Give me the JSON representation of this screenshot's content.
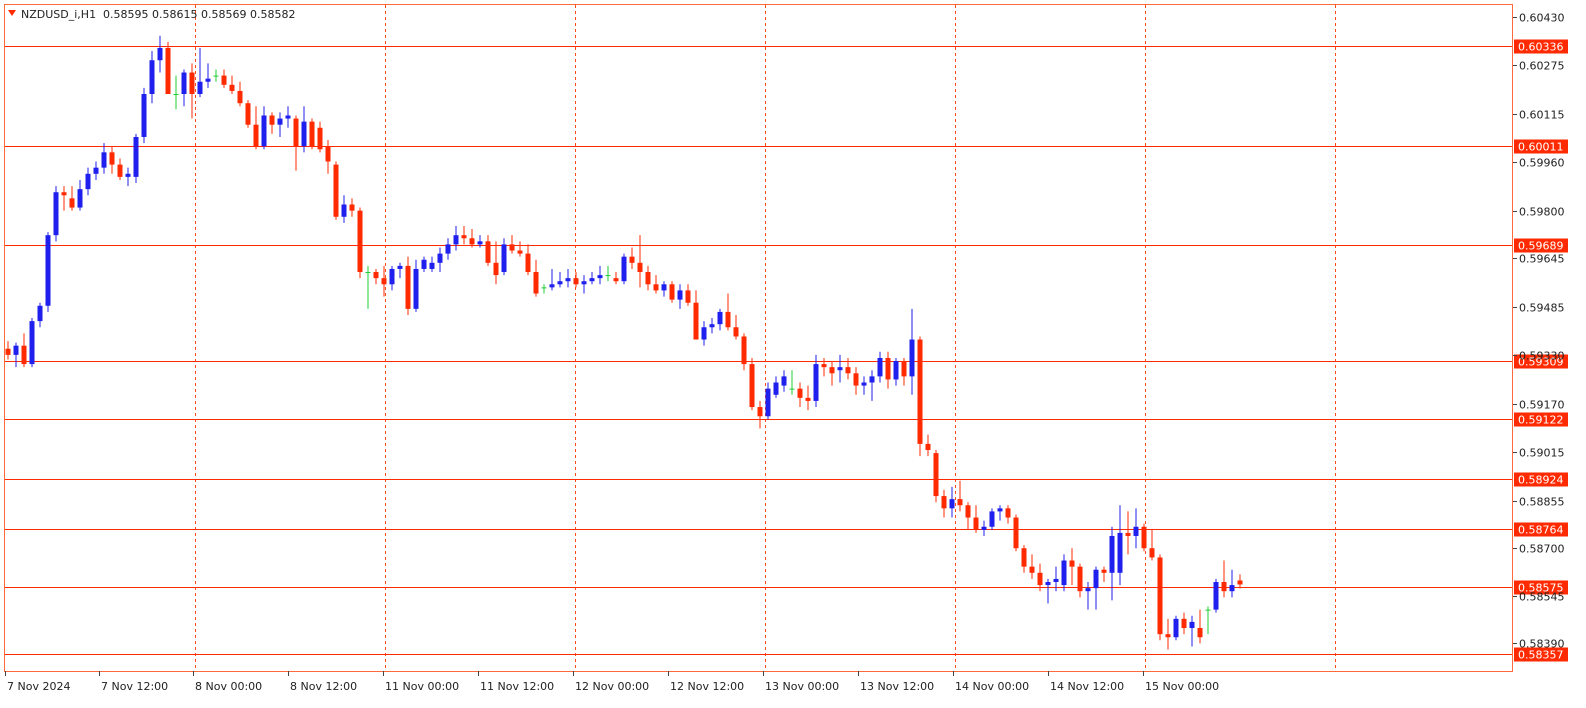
{
  "header": {
    "symbol": "NZDUSD_i,H1",
    "ohlc": "0.58595 0.58615 0.58569 0.58582"
  },
  "colors": {
    "bull": "#1f1fee",
    "bear": "#ff2a00",
    "doji": "#22cc33",
    "grid": "#ff4a1a",
    "hline": "#ff2a00",
    "frame": "#ff6a3a",
    "text": "#222222"
  },
  "chart_data": {
    "type": "candlestick",
    "timeframe": "H1",
    "ylim": [
      0.583,
      0.6047
    ],
    "y_ticks": [
      "0.60430",
      "0.60275",
      "0.60115",
      "0.59960",
      "0.59800",
      "0.59645",
      "0.59485",
      "0.59330",
      "0.59170",
      "0.59015",
      "0.58855",
      "0.58700",
      "0.58545",
      "0.58390"
    ],
    "x_labels": [
      "7 Nov 2024",
      "7 Nov 12:00",
      "8 Nov 00:00",
      "8 Nov 12:00",
      "11 Nov 00:00",
      "11 Nov 12:00",
      "12 Nov 00:00",
      "12 Nov 12:00",
      "13 Nov 00:00",
      "13 Nov 12:00",
      "14 Nov 00:00",
      "14 Nov 12:00",
      "15 Nov 00:00"
    ],
    "horizontal_levels": [
      "0.60336",
      "0.60011",
      "0.59689",
      "0.59309",
      "0.59122",
      "0.58924",
      "0.58764",
      "0.58575",
      "0.58357"
    ],
    "candles": [
      [
        0.5935,
        0.59375,
        0.59315,
        0.5933
      ],
      [
        0.5933,
        0.5937,
        0.5929,
        0.5936
      ],
      [
        0.5936,
        0.594,
        0.5929,
        0.593
      ],
      [
        0.593,
        0.5945,
        0.5929,
        0.5944
      ],
      [
        0.5944,
        0.595,
        0.5942,
        0.5949
      ],
      [
        0.5949,
        0.5973,
        0.5947,
        0.5972
      ],
      [
        0.5972,
        0.5988,
        0.597,
        0.5986
      ],
      [
        0.5986,
        0.5988,
        0.598,
        0.5985
      ],
      [
        0.5984,
        0.5988,
        0.598,
        0.5981
      ],
      [
        0.5981,
        0.599,
        0.598,
        0.5987
      ],
      [
        0.5987,
        0.5994,
        0.5985,
        0.5992
      ],
      [
        0.5992,
        0.5996,
        0.599,
        0.5994
      ],
      [
        0.5994,
        0.6002,
        0.5992,
        0.5999
      ],
      [
        0.5999,
        0.6001,
        0.5992,
        0.5995
      ],
      [
        0.5995,
        0.5997,
        0.599,
        0.5991
      ],
      [
        0.5991,
        0.5994,
        0.5988,
        0.5992
      ],
      [
        0.5991,
        0.6005,
        0.5989,
        0.6004
      ],
      [
        0.6004,
        0.602,
        0.6002,
        0.6018
      ],
      [
        0.6018,
        0.6032,
        0.6015,
        0.6029
      ],
      [
        0.6029,
        0.6037,
        0.6025,
        0.6033
      ],
      [
        0.6033,
        0.6035,
        0.6018,
        0.6018
      ],
      [
        0.6018,
        0.6024,
        0.6013,
        0.6018
      ],
      [
        0.6018,
        0.6026,
        0.6014,
        0.6025
      ],
      [
        0.6025,
        0.6028,
        0.601,
        0.6018
      ],
      [
        0.6018,
        0.6033,
        0.6017,
        0.6022
      ],
      [
        0.6022,
        0.6028,
        0.602,
        0.6023
      ],
      [
        0.6024,
        0.6026,
        0.6022,
        0.6024
      ],
      [
        0.6024,
        0.6026,
        0.602,
        0.6021
      ],
      [
        0.6021,
        0.6024,
        0.6018,
        0.6019
      ],
      [
        0.6019,
        0.6022,
        0.6014,
        0.6015
      ],
      [
        0.6015,
        0.6016,
        0.6007,
        0.6008
      ],
      [
        0.6008,
        0.6014,
        0.6,
        0.6001
      ],
      [
        0.6001,
        0.6014,
        0.6,
        0.6011
      ],
      [
        0.6011,
        0.6012,
        0.6005,
        0.6008
      ],
      [
        0.6008,
        0.6012,
        0.6004,
        0.601
      ],
      [
        0.601,
        0.6014,
        0.6007,
        0.6011
      ],
      [
        0.601,
        0.6011,
        0.5993,
        0.6001
      ],
      [
        0.6001,
        0.6014,
        0.5999,
        0.6009
      ],
      [
        0.6009,
        0.601,
        0.6,
        0.6001
      ],
      [
        0.6007,
        0.6009,
        0.5999,
        0.6
      ],
      [
        0.6001,
        0.6003,
        0.5992,
        0.5996
      ],
      [
        0.5995,
        0.5996,
        0.5977,
        0.5978
      ],
      [
        0.5978,
        0.5985,
        0.5976,
        0.5982
      ],
      [
        0.5982,
        0.5984,
        0.5978,
        0.598
      ],
      [
        0.598,
        0.5981,
        0.5958,
        0.596
      ],
      [
        0.596,
        0.5962,
        0.5948,
        0.596
      ],
      [
        0.596,
        0.5961,
        0.5956,
        0.5958
      ],
      [
        0.5958,
        0.5962,
        0.5952,
        0.5956
      ],
      [
        0.5956,
        0.5962,
        0.5954,
        0.5961
      ],
      [
        0.5961,
        0.5963,
        0.5958,
        0.5962
      ],
      [
        0.5962,
        0.5965,
        0.5946,
        0.5948
      ],
      [
        0.5948,
        0.5964,
        0.5947,
        0.5961
      ],
      [
        0.5961,
        0.5965,
        0.596,
        0.5964
      ],
      [
        0.5961,
        0.5965,
        0.596,
        0.5963
      ],
      [
        0.5963,
        0.5968,
        0.596,
        0.5966
      ],
      [
        0.5966,
        0.5971,
        0.5964,
        0.5969
      ],
      [
        0.5969,
        0.5975,
        0.5967,
        0.5972
      ],
      [
        0.5972,
        0.5975,
        0.5969,
        0.5971
      ],
      [
        0.5971,
        0.5974,
        0.5968,
        0.5969
      ],
      [
        0.5969,
        0.5972,
        0.5968,
        0.597
      ],
      [
        0.597,
        0.5972,
        0.5962,
        0.5963
      ],
      [
        0.5963,
        0.597,
        0.5956,
        0.5959
      ],
      [
        0.596,
        0.5971,
        0.5959,
        0.5969
      ],
      [
        0.5969,
        0.5972,
        0.5966,
        0.5967
      ],
      [
        0.5967,
        0.597,
        0.5965,
        0.5966
      ],
      [
        0.5966,
        0.5969,
        0.5959,
        0.596
      ],
      [
        0.596,
        0.5964,
        0.5952,
        0.5953
      ],
      [
        0.5955,
        0.5956,
        0.5953,
        0.5955
      ],
      [
        0.5955,
        0.5961,
        0.5954,
        0.5956
      ],
      [
        0.5956,
        0.596,
        0.5955,
        0.5957
      ],
      [
        0.5957,
        0.5961,
        0.5955,
        0.5958
      ],
      [
        0.5958,
        0.596,
        0.5955,
        0.5956
      ],
      [
        0.5956,
        0.5959,
        0.5953,
        0.5957
      ],
      [
        0.5957,
        0.596,
        0.5956,
        0.5958
      ],
      [
        0.5958,
        0.5962,
        0.5956,
        0.5959
      ],
      [
        0.5959,
        0.5962,
        0.5957,
        0.5959
      ],
      [
        0.5958,
        0.596,
        0.5956,
        0.5957
      ],
      [
        0.5957,
        0.5966,
        0.5956,
        0.5965
      ],
      [
        0.5965,
        0.5968,
        0.5961,
        0.5963
      ],
      [
        0.5963,
        0.5972,
        0.5955,
        0.596
      ],
      [
        0.596,
        0.5962,
        0.5954,
        0.5956
      ],
      [
        0.5956,
        0.5959,
        0.5953,
        0.5954
      ],
      [
        0.5954,
        0.5957,
        0.5952,
        0.5956
      ],
      [
        0.5956,
        0.5957,
        0.595,
        0.5951
      ],
      [
        0.5951,
        0.5956,
        0.5948,
        0.5954
      ],
      [
        0.5954,
        0.5956,
        0.5949,
        0.595
      ],
      [
        0.595,
        0.5954,
        0.5938,
        0.5938
      ],
      [
        0.5938,
        0.5944,
        0.5936,
        0.5942
      ],
      [
        0.5942,
        0.5945,
        0.594,
        0.5943
      ],
      [
        0.5943,
        0.5948,
        0.5941,
        0.5947
      ],
      [
        0.5947,
        0.5953,
        0.5941,
        0.5942
      ],
      [
        0.5942,
        0.5946,
        0.5938,
        0.5939
      ],
      [
        0.5939,
        0.594,
        0.5928,
        0.593
      ],
      [
        0.593,
        0.5932,
        0.5915,
        0.5916
      ],
      [
        0.5916,
        0.5918,
        0.5909,
        0.5913
      ],
      [
        0.5913,
        0.5924,
        0.5912,
        0.5922
      ],
      [
        0.592,
        0.5926,
        0.5919,
        0.5924
      ],
      [
        0.5923,
        0.5928,
        0.5921,
        0.5926
      ],
      [
        0.5922,
        0.5928,
        0.592,
        0.5922
      ],
      [
        0.5922,
        0.5924,
        0.5916,
        0.5919
      ],
      [
        0.5919,
        0.5923,
        0.5915,
        0.5918
      ],
      [
        0.5918,
        0.5933,
        0.5916,
        0.593
      ],
      [
        0.593,
        0.5932,
        0.5926,
        0.5929
      ],
      [
        0.5929,
        0.5931,
        0.5923,
        0.5927
      ],
      [
        0.5928,
        0.5933,
        0.5924,
        0.5929
      ],
      [
        0.5929,
        0.5932,
        0.5925,
        0.5927
      ],
      [
        0.5927,
        0.5929,
        0.592,
        0.5923
      ],
      [
        0.5923,
        0.5926,
        0.592,
        0.5924
      ],
      [
        0.5924,
        0.5928,
        0.5918,
        0.5926
      ],
      [
        0.5926,
        0.5934,
        0.5924,
        0.5932
      ],
      [
        0.5932,
        0.5934,
        0.5922,
        0.5925
      ],
      [
        0.5925,
        0.5932,
        0.5923,
        0.5931
      ],
      [
        0.5931,
        0.5932,
        0.5923,
        0.5926
      ],
      [
        0.5926,
        0.5948,
        0.592,
        0.5938
      ],
      [
        0.5938,
        0.5939,
        0.59,
        0.5904
      ],
      [
        0.5904,
        0.5907,
        0.59,
        0.5902
      ],
      [
        0.5901,
        0.5902,
        0.5885,
        0.5887
      ],
      [
        0.5887,
        0.5889,
        0.588,
        0.5883
      ],
      [
        0.5883,
        0.589,
        0.588,
        0.5886
      ],
      [
        0.5886,
        0.5892,
        0.5882,
        0.5884
      ],
      [
        0.5884,
        0.5885,
        0.5876,
        0.588
      ],
      [
        0.588,
        0.5884,
        0.5875,
        0.5876
      ],
      [
        0.5876,
        0.5879,
        0.5874,
        0.5877
      ],
      [
        0.5877,
        0.5883,
        0.5876,
        0.5882
      ],
      [
        0.5882,
        0.5884,
        0.5879,
        0.5883
      ],
      [
        0.5883,
        0.5884,
        0.5878,
        0.588
      ],
      [
        0.588,
        0.5881,
        0.5869,
        0.587
      ],
      [
        0.587,
        0.5871,
        0.5862,
        0.5864
      ],
      [
        0.5864,
        0.5868,
        0.586,
        0.5862
      ],
      [
        0.5862,
        0.5865,
        0.5856,
        0.5858
      ],
      [
        0.5858,
        0.586,
        0.5852,
        0.5859
      ],
      [
        0.5859,
        0.5864,
        0.5856,
        0.586
      ],
      [
        0.5858,
        0.5868,
        0.5856,
        0.5866
      ],
      [
        0.5866,
        0.587,
        0.5858,
        0.5864
      ],
      [
        0.5864,
        0.5865,
        0.5854,
        0.5856
      ],
      [
        0.5856,
        0.5859,
        0.585,
        0.5857
      ],
      [
        0.5857,
        0.5864,
        0.585,
        0.5863
      ],
      [
        0.5863,
        0.5864,
        0.5859,
        0.5862
      ],
      [
        0.5862,
        0.5877,
        0.5853,
        0.5874
      ],
      [
        0.5862,
        0.5884,
        0.5858,
        0.5875
      ],
      [
        0.5875,
        0.5882,
        0.5868,
        0.5874
      ],
      [
        0.5874,
        0.5883,
        0.587,
        0.5877
      ],
      [
        0.5877,
        0.5878,
        0.5869,
        0.587
      ],
      [
        0.587,
        0.5876,
        0.5866,
        0.5867
      ],
      [
        0.5867,
        0.5868,
        0.584,
        0.5842
      ],
      [
        0.5842,
        0.5847,
        0.5837,
        0.5841
      ],
      [
        0.5841,
        0.5848,
        0.584,
        0.5847
      ],
      [
        0.5847,
        0.5849,
        0.5842,
        0.5844
      ],
      [
        0.5844,
        0.5848,
        0.5838,
        0.5846
      ],
      [
        0.5844,
        0.585,
        0.5839,
        0.5841
      ],
      [
        0.585,
        0.5851,
        0.5842,
        0.585
      ],
      [
        0.585,
        0.586,
        0.5849,
        0.5859
      ],
      [
        0.5859,
        0.5866,
        0.5854,
        0.5856
      ],
      [
        0.5856,
        0.5863,
        0.5854,
        0.5858
      ],
      [
        0.58595,
        0.58615,
        0.58569,
        0.58582
      ]
    ]
  }
}
